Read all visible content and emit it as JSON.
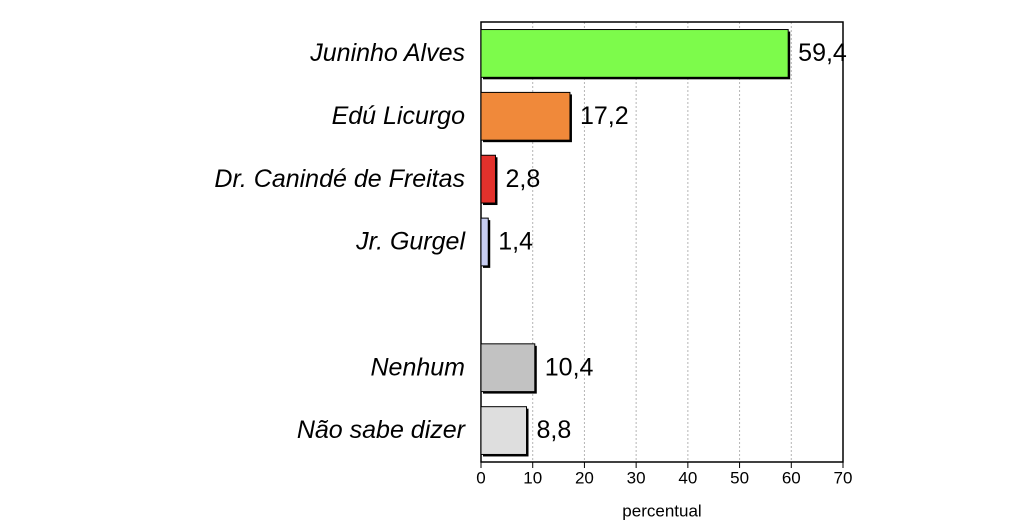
{
  "chart_data": {
    "type": "barh",
    "categories": [
      "Juninho Alves",
      "Edú Licurgo",
      "Dr. Canindé de Freitas",
      "Jr. Gurgel",
      null,
      "Nenhum",
      "Não sabe dizer"
    ],
    "values": [
      59.4,
      17.2,
      2.8,
      1.4,
      null,
      10.4,
      8.8
    ],
    "value_labels": [
      "59,4",
      "17,2",
      "2,8",
      "1,4",
      null,
      "10,4",
      "8,8"
    ],
    "colors": [
      "#7dfb4b",
      "#f0893a",
      "#e3312c",
      "#c7cdf2",
      null,
      "#c2c2c2",
      "#dedede"
    ],
    "xlabel": "percentual",
    "xlim": [
      0,
      70
    ],
    "xticks": [
      0,
      10,
      20,
      30,
      40,
      50,
      60,
      70
    ],
    "grid": true
  }
}
